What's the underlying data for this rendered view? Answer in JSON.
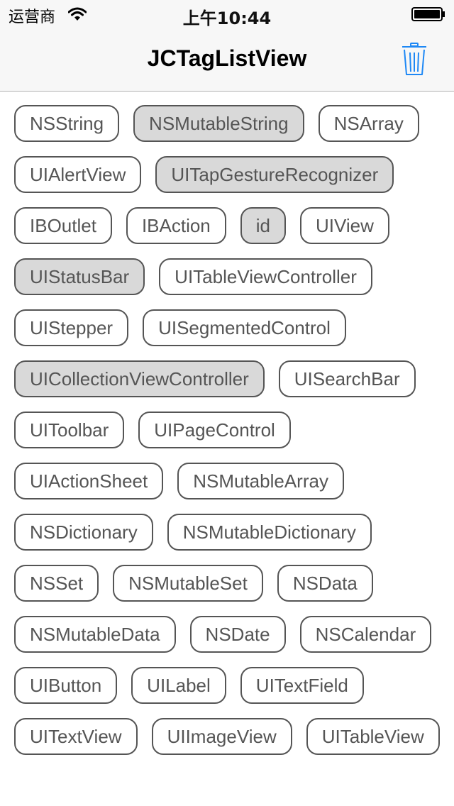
{
  "status_bar": {
    "carrier": "运营商",
    "time": "上午10:44",
    "wifi_icon": "wifi-icon",
    "battery_icon": "battery-full-icon"
  },
  "nav": {
    "title": "JCTagListView",
    "right_icon": "trash-icon",
    "tint_color": "#1e88f5"
  },
  "tags": [
    {
      "label": "NSString",
      "selected": false
    },
    {
      "label": "NSMutableString",
      "selected": true
    },
    {
      "label": "NSArray",
      "selected": false
    },
    {
      "label": "UIAlertView",
      "selected": false
    },
    {
      "label": "UITapGestureRecognizer",
      "selected": true
    },
    {
      "label": "IBOutlet",
      "selected": false
    },
    {
      "label": "IBAction",
      "selected": false
    },
    {
      "label": "id",
      "selected": true
    },
    {
      "label": "UIView",
      "selected": false
    },
    {
      "label": "UIStatusBar",
      "selected": true
    },
    {
      "label": "UITableViewController",
      "selected": false
    },
    {
      "label": "UIStepper",
      "selected": false
    },
    {
      "label": "UISegmentedControl",
      "selected": false
    },
    {
      "label": "UICollectionViewController",
      "selected": true
    },
    {
      "label": "UISearchBar",
      "selected": false
    },
    {
      "label": "UIToolbar",
      "selected": false
    },
    {
      "label": "UIPageControl",
      "selected": false
    },
    {
      "label": "UIActionSheet",
      "selected": false
    },
    {
      "label": "NSMutableArray",
      "selected": false
    },
    {
      "label": "NSDictionary",
      "selected": false
    },
    {
      "label": "NSMutableDictionary",
      "selected": false
    },
    {
      "label": "NSSet",
      "selected": false
    },
    {
      "label": "NSMutableSet",
      "selected": false
    },
    {
      "label": "NSData",
      "selected": false
    },
    {
      "label": "NSMutableData",
      "selected": false
    },
    {
      "label": "NSDate",
      "selected": false
    },
    {
      "label": "NSCalendar",
      "selected": false
    },
    {
      "label": "UIButton",
      "selected": false
    },
    {
      "label": "UILabel",
      "selected": false
    },
    {
      "label": "UITextField",
      "selected": false
    },
    {
      "label": "UITextView",
      "selected": false
    },
    {
      "label": "UIImageView",
      "selected": false
    },
    {
      "label": "UITableView",
      "selected": false
    }
  ],
  "colors": {
    "tag_border": "#555555",
    "tag_text": "#555555",
    "tag_selected_bg": "#d9d9d9",
    "bar_bg": "#f7f7f7"
  }
}
